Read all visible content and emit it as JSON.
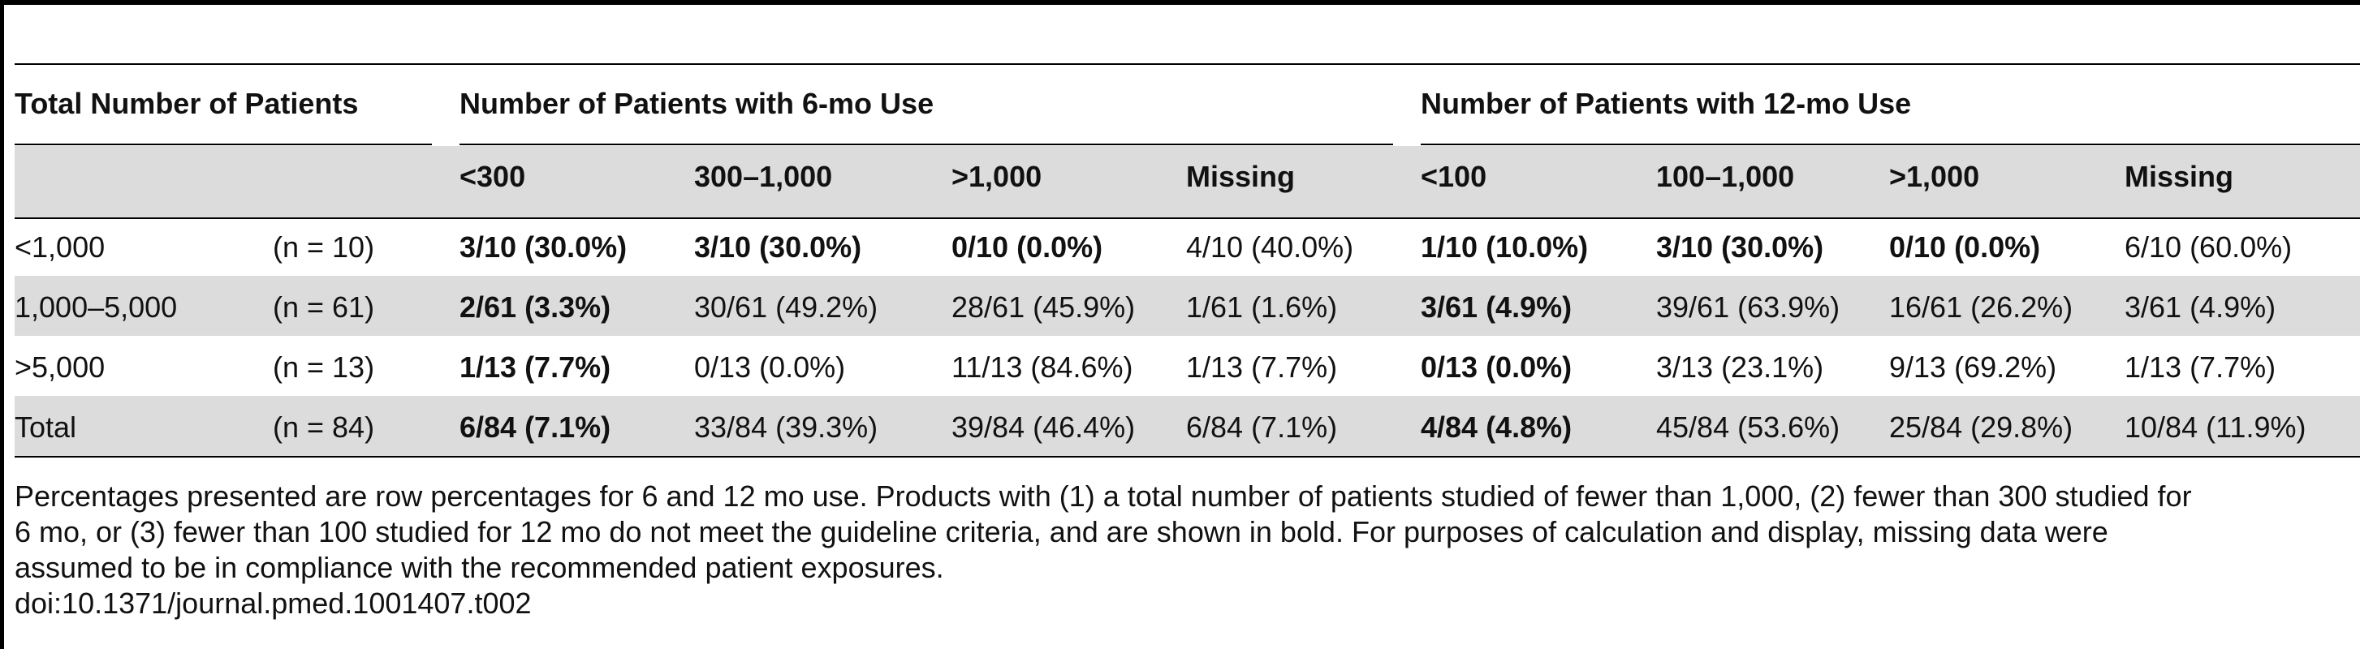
{
  "table": {
    "header": {
      "total": "Total Number of Patients",
      "group6": "Number of Patients with 6-mo Use",
      "group12": "Number of Patients with 12-mo Use",
      "sub6": [
        "<300",
        "300–1,000",
        ">1,000",
        "Missing"
      ],
      "sub12": [
        "<100",
        "100–1,000",
        ">1,000",
        "Missing"
      ]
    },
    "rows": [
      {
        "label": "<1,000",
        "n": "(n = 10)",
        "six": [
          "3/10 (30.0%)",
          "3/10 (30.0%)",
          "0/10 (0.0%)",
          "4/10 (40.0%)"
        ],
        "twelve": [
          "1/10 (10.0%)",
          "3/10 (30.0%)",
          "0/10 (0.0%)",
          "6/10 (60.0%)"
        ]
      },
      {
        "label": "1,000–5,000",
        "n": "(n = 61)",
        "six": [
          "2/61 (3.3%)",
          "30/61 (49.2%)",
          "28/61 (45.9%)",
          "1/61 (1.6%)"
        ],
        "twelve": [
          "3/61 (4.9%)",
          "39/61 (63.9%)",
          "16/61 (26.2%)",
          "3/61 (4.9%)"
        ]
      },
      {
        "label": ">5,000",
        "n": "(n = 13)",
        "six": [
          "1/13 (7.7%)",
          "0/13 (0.0%)",
          "11/13 (84.6%)",
          "1/13 (7.7%)"
        ],
        "twelve": [
          "0/13 (0.0%)",
          "3/13 (23.1%)",
          "9/13 (69.2%)",
          "1/13 (7.7%)"
        ]
      },
      {
        "label": "Total",
        "n": "(n = 84)",
        "six": [
          "6/84 (7.1%)",
          "33/84 (39.3%)",
          "39/84 (46.4%)",
          "6/84 (7.1%)"
        ],
        "twelve": [
          "4/84 (4.8%)",
          "45/84 (53.6%)",
          "25/84 (29.8%)",
          "10/84 (11.9%)"
        ]
      }
    ]
  },
  "footnote": {
    "line1": "Percentages presented are row percentages for 6 and 12 mo use. Products with (1) a total number of patients studied of fewer than 1,000, (2) fewer than 300 studied for",
    "line2": "6 mo, or (3) fewer than 100 studied for 12 mo do not meet the guideline criteria, and are shown in bold. For purposes of calculation and display, missing data were",
    "line3": "assumed to be in compliance with the recommended patient exposures.",
    "doi": "doi:10.1371/journal.pmed.1001407.t002"
  }
}
